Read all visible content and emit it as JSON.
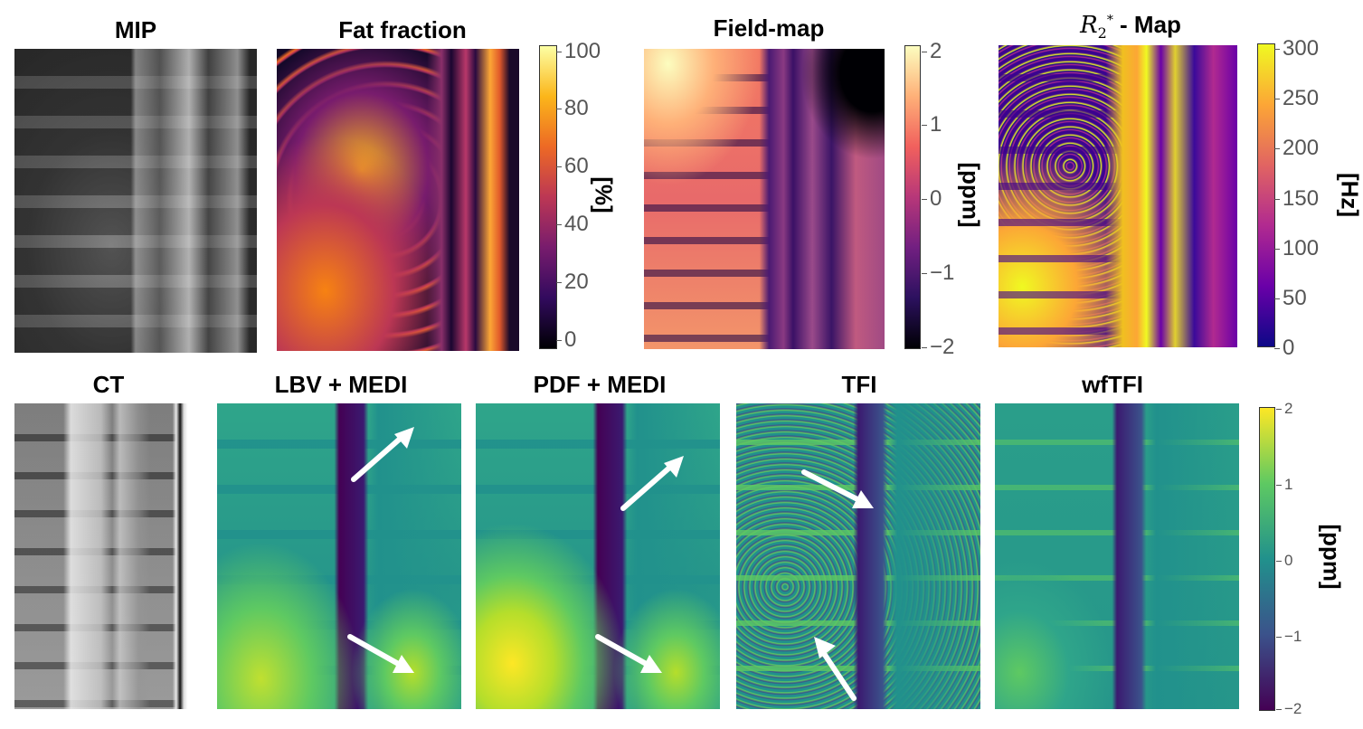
{
  "top_titles": {
    "mip": "MIP",
    "fat": "Fat fraction",
    "field": "Field-map",
    "r2_symbol": "R",
    "r2_sub": "2",
    "r2_sup": "*",
    "r2_rest": " - Map"
  },
  "bottom_titles": {
    "ct": "CT",
    "lbv": "LBV + MEDI",
    "pdf": "PDF + MEDI",
    "tfi": "TFI",
    "wftfi": "wfTFI"
  },
  "colorbars": {
    "fat": {
      "label": "[%]",
      "ticks": [
        "100",
        "80",
        "60",
        "40",
        "20",
        "0"
      ]
    },
    "field": {
      "label": "[ppm]",
      "ticks": [
        "2",
        "1",
        "0",
        "−1",
        "−2"
      ]
    },
    "r2": {
      "label": "[Hz]",
      "ticks": [
        "300",
        "250",
        "200",
        "150",
        "100",
        "50",
        "0"
      ]
    },
    "qsm": {
      "label": "[ppm]",
      "ticks": [
        "2",
        "1",
        "0",
        "−1",
        "−2"
      ]
    }
  },
  "colors": {
    "inferno": [
      "#000004",
      "#320a5e",
      "#781c6d",
      "#bc3754",
      "#ed6925",
      "#fbb61a",
      "#fcffa4"
    ],
    "magma": [
      "#000004",
      "#2c115f",
      "#721f81",
      "#b73779",
      "#f1605d",
      "#feb078",
      "#fcfdbf"
    ],
    "plasma": [
      "#0d0887",
      "#6a00a8",
      "#b12a90",
      "#e16462",
      "#fca636",
      "#f0f921"
    ],
    "viridis": [
      "#440154",
      "#3b528b",
      "#21918c",
      "#5ec962",
      "#fde725"
    ]
  }
}
